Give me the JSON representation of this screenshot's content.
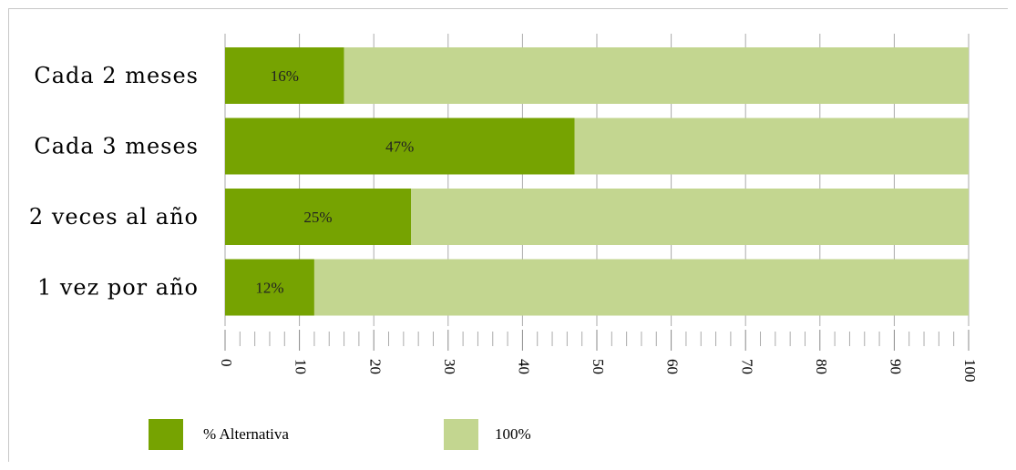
{
  "chart_data": {
    "type": "bar",
    "orientation": "horizontal",
    "stacked": true,
    "categories": [
      "Cada 2 meses",
      "Cada 3 meses",
      "2 veces al año",
      "1 vez por año"
    ],
    "series": [
      {
        "name": "% Alternativa",
        "values": [
          16,
          47,
          25,
          12
        ],
        "color": "#76a301"
      },
      {
        "name": "100%",
        "values": [
          84,
          53,
          75,
          88
        ],
        "color": "#c3d690"
      }
    ],
    "data_labels": [
      "16%",
      "47%",
      "25%",
      "12%"
    ],
    "xlim": [
      0,
      100
    ],
    "xticks": [
      0,
      10,
      20,
      30,
      40,
      50,
      60,
      70,
      80,
      90,
      100
    ],
    "xtick_labels": [
      "0",
      "10",
      "20",
      "30",
      "40",
      "50",
      "60",
      "70",
      "80",
      "90",
      "100"
    ],
    "minor_tick_step": 2,
    "tick_label_rotation": "90 degrees clockwise",
    "grid": true,
    "gridline_color": "#aaaaaa",
    "legend_position": "bottom-left",
    "xlabel": "",
    "ylabel": "",
    "title": ""
  }
}
